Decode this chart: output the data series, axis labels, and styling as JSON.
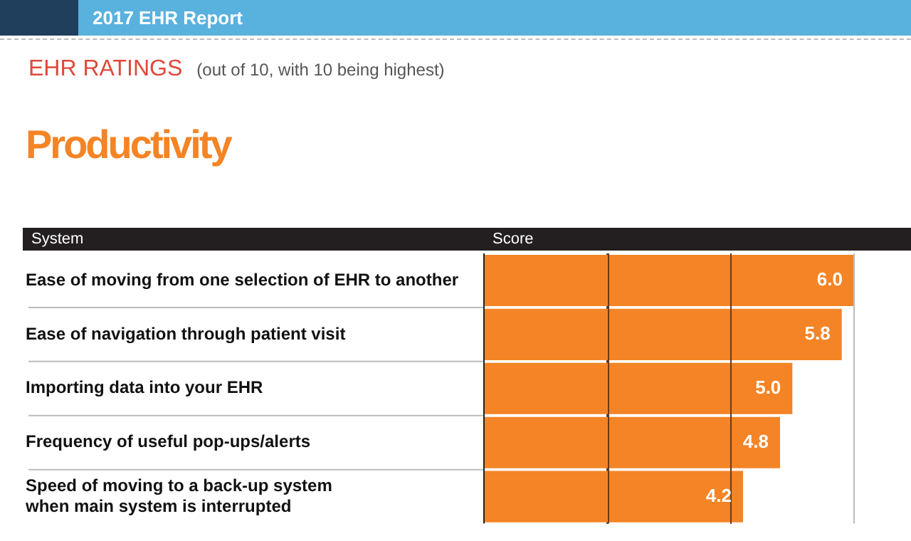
{
  "chart_data": {
    "type": "bar",
    "orientation": "horizontal",
    "title": "Productivity",
    "subtitle": "EHR RATINGS",
    "annotations": [
      "2017 EHR Report",
      "(out of 10, with 10 being highest)"
    ],
    "ylabel": "System",
    "xlabel": "Score",
    "categories": [
      "Ease of moving from one selection of EHR to another",
      "Ease of navigation through patient visit",
      "Importing data into your EHR",
      "Frequency of useful pop-ups/alerts",
      "Speed of moving to a back-up system\nwhen main system is interrupted"
    ],
    "values": [
      6.0,
      5.8,
      5.0,
      4.8,
      4.2
    ],
    "value_labels": [
      "6.0",
      "5.8",
      "5.0",
      "4.8",
      "4.2"
    ],
    "color": "#f48425",
    "xlim": [
      0,
      6
    ],
    "xticks": [
      {
        "value": 0,
        "label": null
      },
      {
        "value": 2,
        "label": null
      },
      {
        "value": 4,
        "label": null
      },
      {
        "value": 6,
        "label": null
      }
    ],
    "grid": "x",
    "tick_labels": "y",
    "legend": false
  }
}
